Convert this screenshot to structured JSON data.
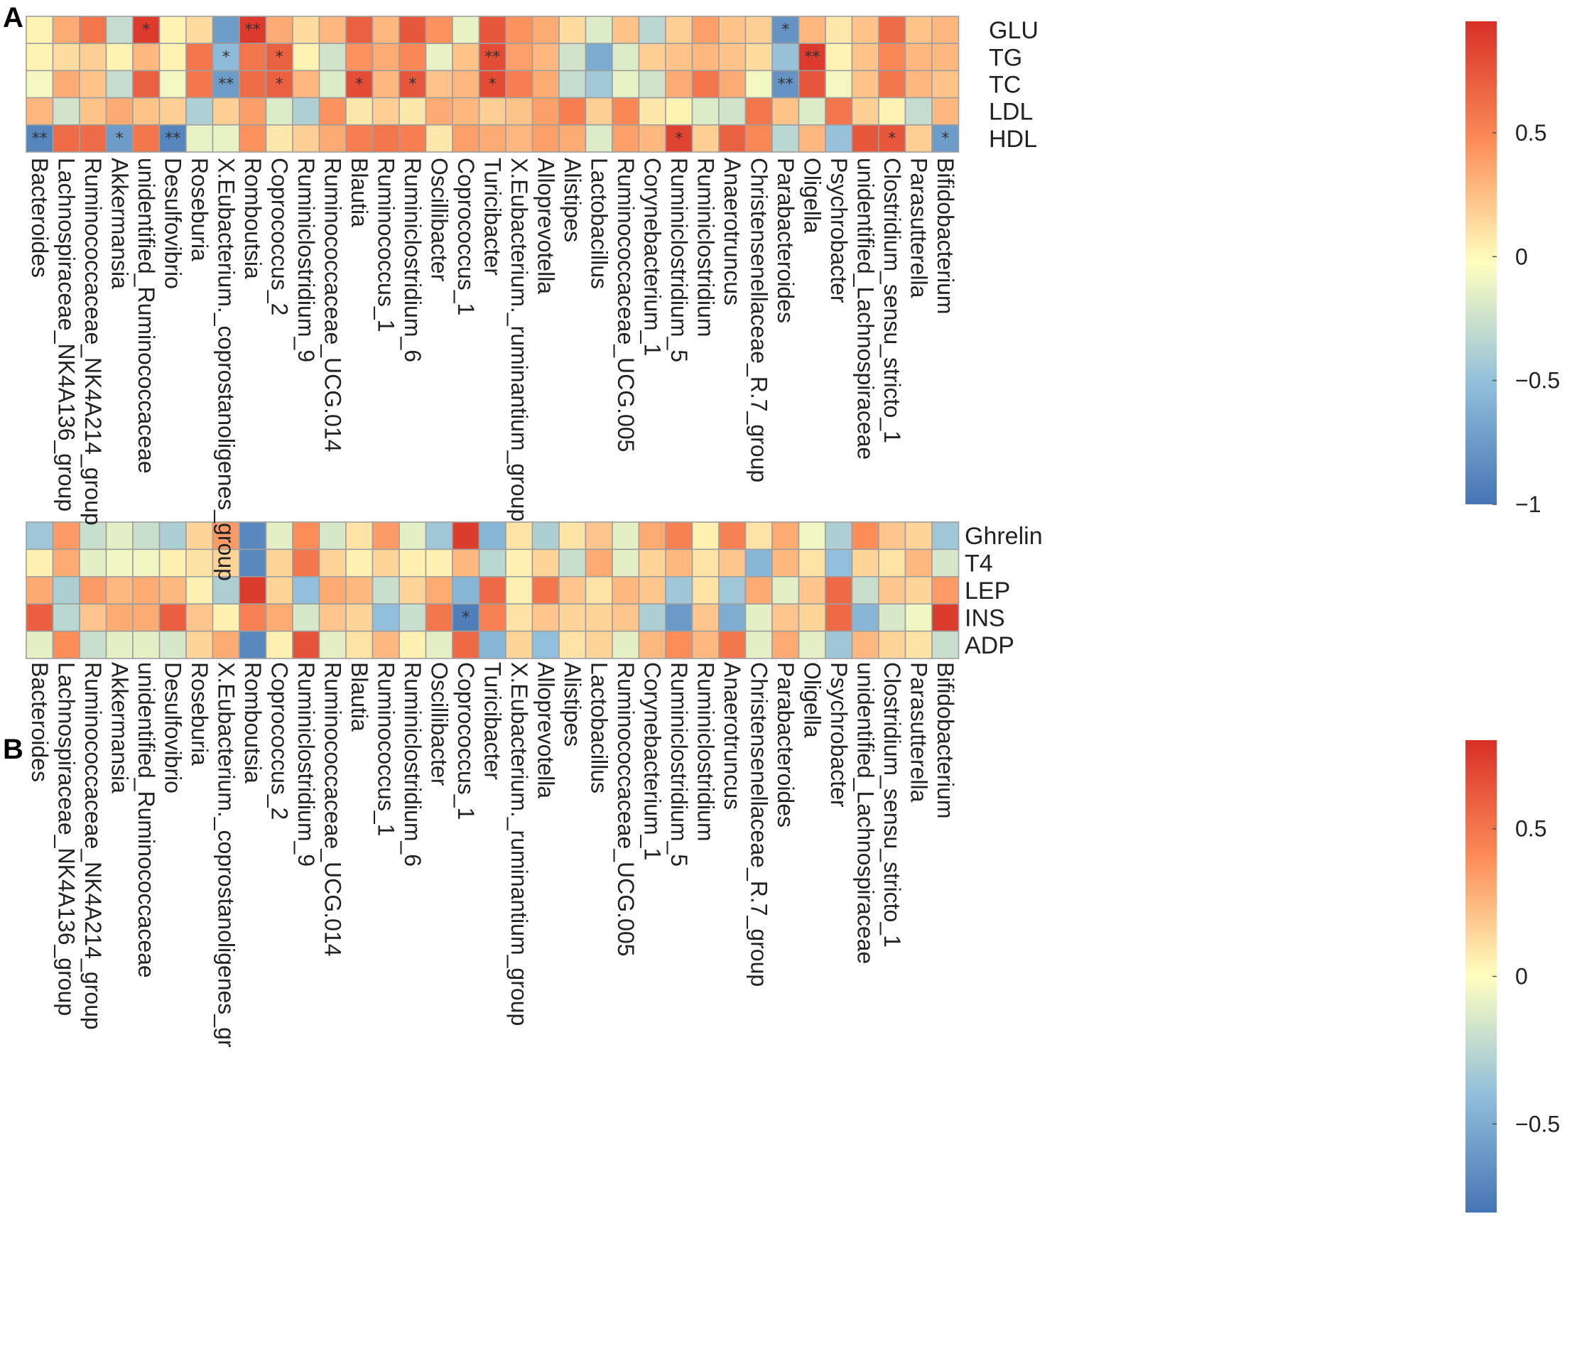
{
  "chart_data": [
    {
      "panel": "A",
      "type": "heatmap",
      "title": "",
      "columns": [
        "Bacteroides",
        "Lachnospiraceae_NK4A136_group",
        "Ruminococcaceae_NK4A214_group",
        "Akkermansia",
        "unidentified_Ruminococcaceae",
        "Desulfovibrio",
        "Roseburia",
        "X.Eubacterium._coprostanoligenes_group",
        "Romboutsia",
        "Coprococcus_2",
        "Ruminiclostridium_9",
        "Ruminococcaceae_UCG.014",
        "Blautia",
        "Ruminococcus_1",
        "Ruminiclostridium_6",
        "Oscillibacter",
        "Coprococcus_1",
        "Turicibacter",
        "X.Eubacterium._ruminantium_group",
        "Alloprevotella",
        "Alistipes",
        "Lactobacillus",
        "Ruminococcaceae_UCG.005",
        "Corynebacterium_1",
        "Ruminiclostridium_5",
        "Ruminiclostridium",
        "Anaerotruncus",
        "Christensenellaceae_R.7_group",
        "Parabacteroides",
        "Oligella",
        "Psychrobacter",
        "unidentified_Lachnospiraceae",
        "Clostridium_sensu_stricto_1",
        "Parasutterella",
        "Bifidobacterium"
      ],
      "rows": [
        "GLU",
        "TG",
        "TC",
        "LDL",
        "HDL"
      ],
      "values": [
        [
          0.05,
          0.35,
          0.6,
          -0.25,
          0.9,
          0.05,
          0.15,
          -0.7,
          0.9,
          0.35,
          0.15,
          0.3,
          0.7,
          0.3,
          0.75,
          0.45,
          -0.1,
          0.75,
          0.45,
          0.35,
          0.15,
          -0.15,
          0.25,
          -0.3,
          0.2,
          0.4,
          0.25,
          0.2,
          -0.75,
          0.3,
          0.1,
          0.25,
          0.65,
          0.25,
          0.3
        ],
        [
          0.05,
          0.15,
          0.2,
          0.05,
          0.3,
          0.05,
          0.6,
          -0.5,
          0.6,
          0.7,
          0.05,
          -0.2,
          0.45,
          0.35,
          0.5,
          -0.1,
          0.25,
          0.8,
          0.4,
          0.3,
          -0.2,
          -0.6,
          -0.15,
          0.2,
          0.25,
          0.3,
          0.25,
          0.15,
          -0.45,
          0.9,
          0.05,
          0.25,
          0.5,
          0.3,
          0.3
        ],
        [
          -0.05,
          0.35,
          0.25,
          -0.25,
          0.7,
          -0.05,
          0.6,
          -0.7,
          0.65,
          0.7,
          0.3,
          -0.15,
          0.8,
          0.3,
          0.75,
          0.25,
          0.3,
          0.8,
          0.55,
          0.35,
          -0.25,
          -0.4,
          -0.1,
          -0.2,
          0.35,
          0.6,
          0.35,
          -0.05,
          -0.75,
          0.75,
          -0.05,
          0.25,
          0.6,
          0.3,
          0.25
        ],
        [
          0.3,
          -0.2,
          0.25,
          0.35,
          0.25,
          0.2,
          -0.35,
          0.2,
          0.4,
          -0.15,
          -0.35,
          0.45,
          0.1,
          0.2,
          0.1,
          0.35,
          0.3,
          0.2,
          0.25,
          0.4,
          0.55,
          0.2,
          0.5,
          0.1,
          0.05,
          -0.15,
          -0.2,
          0.6,
          0.25,
          -0.15,
          0.6,
          0.2,
          0.05,
          -0.25,
          0.3
        ],
        [
          -0.85,
          0.65,
          0.65,
          -0.7,
          0.6,
          -0.85,
          -0.1,
          -0.1,
          0.45,
          0.1,
          0.2,
          0.35,
          0.55,
          0.6,
          0.55,
          0.1,
          0.4,
          0.35,
          0.3,
          0.4,
          0.35,
          -0.15,
          0.4,
          0.3,
          0.85,
          0.2,
          0.7,
          0.5,
          -0.3,
          0.3,
          -0.45,
          0.75,
          0.75,
          0.2,
          -0.7
        ]
      ],
      "significance": [
        [
          "",
          "",
          "",
          "",
          "*",
          "",
          "",
          "",
          "**",
          "",
          "",
          "",
          "",
          "",
          "",
          "",
          "",
          "",
          "",
          "",
          "",
          "",
          "",
          "",
          "",
          "",
          "",
          "",
          "*",
          "",
          "",
          "",
          "",
          "",
          ""
        ],
        [
          "",
          "",
          "",
          "",
          "",
          "",
          "",
          "*",
          "",
          "*",
          "",
          "",
          "",
          "",
          "",
          "",
          "",
          "**",
          "",
          "",
          "",
          "",
          "",
          "",
          "",
          "",
          "",
          "",
          "",
          "**",
          "",
          "",
          "",
          "",
          ""
        ],
        [
          "",
          "",
          "",
          "",
          "",
          "",
          "",
          "**",
          "",
          "*",
          "",
          "",
          "*",
          "",
          "*",
          "",
          "",
          "*",
          "",
          "",
          "",
          "",
          "",
          "",
          "",
          "",
          "",
          "",
          "**",
          "",
          "",
          "",
          "",
          "",
          ""
        ],
        [
          "",
          "",
          "",
          "",
          "",
          "",
          "",
          "",
          "",
          "",
          "",
          "",
          "",
          "",
          "",
          "",
          "",
          "",
          "",
          "",
          "",
          "",
          "",
          "",
          "",
          "",
          "",
          "",
          "",
          "",
          "",
          "",
          "",
          "",
          ""
        ],
        [
          "**",
          "",
          "",
          "*",
          "",
          "**",
          "",
          "",
          "",
          "",
          "",
          "",
          "",
          "",
          "",
          "",
          "",
          "",
          "",
          "",
          "",
          "",
          "",
          "",
          "*",
          "",
          "",
          "",
          "",
          "",
          "",
          "",
          "*",
          "",
          "*"
        ]
      ],
      "colorbar": {
        "ticks": [
          0.5,
          0,
          -0.5,
          -1
        ],
        "tick_labels": [
          "0.5",
          "0",
          "−0.5",
          "−1"
        ],
        "range": [
          -1,
          0.95
        ]
      }
    },
    {
      "panel": "B",
      "type": "heatmap",
      "title": "",
      "columns": [
        "Bacteroides",
        "Lachnospiraceae_NK4A136_group",
        "Ruminococcaceae_NK4A214_group",
        "Akkermansia",
        "unidentified_Ruminococcaceae",
        "Desulfovibrio",
        "Roseburia",
        "X.Eubacterium._coprostanoligenes_gr",
        "Romboutsia",
        "Coprococcus_2",
        "Ruminiclostridium_9",
        "Ruminococcaceae_UCG.014",
        "Blautia",
        "Ruminococcus_1",
        "Ruminiclostridium_6",
        "Oscillibacter",
        "Coprococcus_1",
        "Turicibacter",
        "X.Eubacterium._ruminantium_group",
        "Alloprevotella",
        "Alistipes",
        "Lactobacillus",
        "Ruminococcaceae_UCG.005",
        "Corynebacterium_1",
        "Ruminiclostridium_5",
        "Ruminiclostridium",
        "Anaerotruncus",
        "Christensenellaceae_R.7_group",
        "Parabacteroides",
        "Oligella",
        "Psychrobacter",
        "unidentified_Lachnospiraceae",
        "Clostridium_sensu_stricto_1",
        "Parasutterella",
        "Bifidobacterium"
      ],
      "rows": [
        "Ghrelin",
        "T4",
        "LEP",
        "INS",
        "ADP"
      ],
      "values": [
        [
          -0.35,
          0.35,
          -0.2,
          -0.1,
          -0.2,
          -0.3,
          0.15,
          0.35,
          -0.7,
          -0.1,
          0.4,
          -0.15,
          0.1,
          0.35,
          -0.1,
          -0.35,
          0.75,
          -0.45,
          0.1,
          -0.3,
          0.1,
          0.2,
          -0.1,
          0.3,
          0.45,
          0.05,
          0.45,
          0.1,
          0.3,
          -0.05,
          -0.3,
          0.4,
          0.2,
          0.15,
          -0.35
        ],
        [
          0.05,
          0.3,
          -0.1,
          -0.05,
          -0.05,
          0.05,
          0.1,
          0.15,
          -0.7,
          0.15,
          0.5,
          0.15,
          0.05,
          0.15,
          0.05,
          0.05,
          0.25,
          -0.25,
          0.05,
          0.15,
          -0.2,
          0.3,
          -0.1,
          0.15,
          0.25,
          0.1,
          0.2,
          -0.45,
          0.25,
          0.1,
          -0.4,
          0.15,
          0.1,
          0.25,
          -0.15
        ],
        [
          0.3,
          -0.3,
          0.35,
          0.25,
          0.3,
          0.25,
          0.05,
          -0.3,
          0.75,
          0.15,
          -0.4,
          0.3,
          0.25,
          -0.2,
          0.15,
          0.3,
          -0.45,
          0.55,
          0.05,
          0.5,
          0.2,
          0.1,
          0.25,
          0.2,
          -0.35,
          0.1,
          -0.35,
          0.3,
          -0.1,
          0.2,
          0.55,
          -0.2,
          0.2,
          0.15,
          0.35
        ],
        [
          0.6,
          -0.25,
          0.2,
          0.3,
          0.3,
          0.6,
          0.2,
          0.05,
          0.45,
          0.3,
          -0.15,
          0.2,
          0.15,
          -0.4,
          -0.2,
          0.5,
          -0.75,
          0.45,
          0.1,
          0.2,
          0.15,
          0.15,
          0.2,
          -0.3,
          -0.6,
          0.2,
          -0.5,
          -0.1,
          0.2,
          0.15,
          0.55,
          -0.45,
          -0.15,
          -0.05,
          0.75
        ],
        [
          -0.1,
          0.4,
          -0.2,
          -0.1,
          -0.1,
          -0.15,
          0.15,
          0.3,
          -0.7,
          0.05,
          0.65,
          -0.1,
          0.1,
          0.25,
          0.05,
          -0.1,
          0.55,
          -0.45,
          0.15,
          -0.4,
          0.1,
          0.15,
          -0.1,
          0.25,
          0.4,
          0.25,
          0.5,
          -0.1,
          0.3,
          -0.1,
          -0.35,
          0.25,
          0.15,
          0.1,
          -0.2
        ]
      ],
      "significance": [
        [
          "",
          "",
          "",
          "",
          "",
          "",
          "",
          "",
          "",
          "",
          "",
          "",
          "",
          "",
          "",
          "",
          "",
          "",
          "",
          "",
          "",
          "",
          "",
          "",
          "",
          "",
          "",
          "",
          "",
          "",
          "",
          "",
          "",
          "",
          ""
        ],
        [
          "",
          "",
          "",
          "",
          "",
          "",
          "",
          "",
          "",
          "",
          "",
          "",
          "",
          "",
          "",
          "",
          "",
          "",
          "",
          "",
          "",
          "",
          "",
          "",
          "",
          "",
          "",
          "",
          "",
          "",
          "",
          "",
          "",
          "",
          ""
        ],
        [
          "",
          "",
          "",
          "",
          "",
          "",
          "",
          "",
          "",
          "",
          "",
          "",
          "",
          "",
          "",
          "",
          "",
          "",
          "",
          "",
          "",
          "",
          "",
          "",
          "",
          "",
          "",
          "",
          "",
          "",
          "",
          "",
          "",
          "",
          ""
        ],
        [
          "",
          "",
          "",
          "",
          "",
          "",
          "",
          "",
          "",
          "",
          "",
          "",
          "",
          "",
          "",
          "",
          "*",
          "",
          "",
          "",
          "",
          "",
          "",
          "",
          "",
          "",
          "",
          "",
          "",
          "",
          "",
          "",
          "",
          "",
          ""
        ],
        [
          "",
          "",
          "",
          "",
          "",
          "",
          "",
          "",
          "",
          "",
          "",
          "",
          "",
          "",
          "",
          "",
          "",
          "",
          "",
          "",
          "",
          "",
          "",
          "",
          "",
          "",
          "",
          "",
          "",
          "",
          "",
          "",
          "",
          "",
          ""
        ]
      ],
      "colorbar": {
        "ticks": [
          0.5,
          0,
          -0.5
        ],
        "tick_labels": [
          "0.5",
          "0",
          "−0.5"
        ],
        "range": [
          -0.8,
          0.8
        ]
      }
    }
  ],
  "colors": {
    "low": "#4575b4",
    "mid": "#ffffbf",
    "high": "#d73027",
    "grid": "#9e9e9e"
  }
}
